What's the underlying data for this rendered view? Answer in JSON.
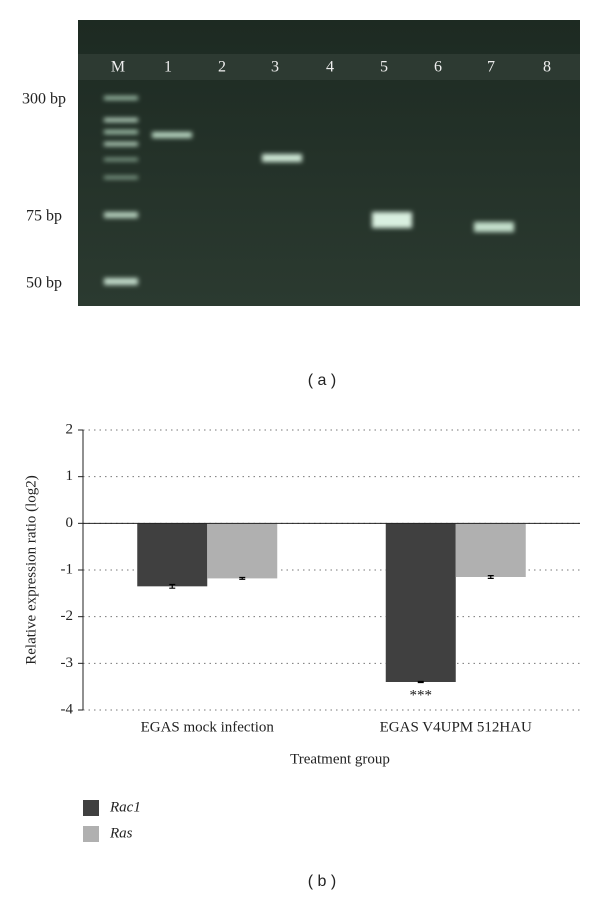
{
  "gel": {
    "lane_labels": [
      "M",
      "1",
      "2",
      "3",
      "4",
      "5",
      "6",
      "7",
      "8"
    ],
    "size_labels": [
      "300 bp",
      "75 bp",
      "50 bp"
    ],
    "caption": "( a )"
  },
  "chart_data": {
    "type": "bar",
    "caption": "( b )",
    "x_label": "Treatment group",
    "y_label": "Relative expression ratio (log2)",
    "categories": [
      "EGAS mock infection",
      "EGAS V4UPM 512HAU"
    ],
    "series": [
      {
        "name": "Rac1",
        "color": "#404040",
        "values": [
          -1.35,
          -3.4
        ],
        "errors": [
          0.04,
          0.01
        ]
      },
      {
        "name": "Ras",
        "color": "#b0b0b0",
        "values": [
          -1.18,
          -1.15
        ],
        "errors": [
          0.02,
          0.03
        ]
      }
    ],
    "annotations": [
      {
        "text": "***",
        "series": 0,
        "category": 1
      }
    ],
    "ylim": [
      -4,
      2
    ],
    "yticks": [
      -4,
      -3,
      -2,
      -1,
      0,
      1,
      2
    ],
    "grid": true
  }
}
